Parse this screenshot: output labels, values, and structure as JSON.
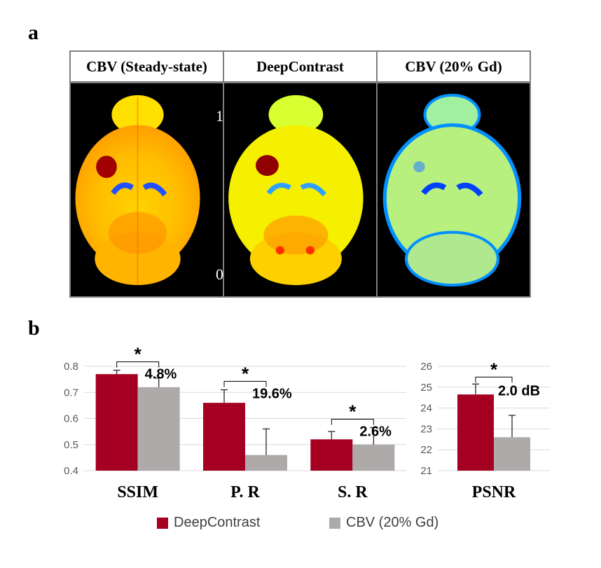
{
  "panel_labels": {
    "a": "a",
    "b": "b"
  },
  "panel_a": {
    "headers": [
      "CBV (Steady-state)",
      "DeepContrast",
      "CBV (20% Gd)"
    ],
    "colorbar": {
      "max_label": "1",
      "min_label": "0"
    }
  },
  "colors": {
    "deepcontrast": "#a50021",
    "cbv20": "#aeaaaa",
    "error_bar": "#404040",
    "grid": "#d9d9d9"
  },
  "legend": {
    "series1": "DeepContrast",
    "series2": "CBV (20% Gd)"
  },
  "chart_data": [
    {
      "type": "bar",
      "categories": [
        "SSIM",
        "P. R",
        "S. R"
      ],
      "series": [
        {
          "name": "DeepContrast",
          "values": [
            0.77,
            0.66,
            0.52
          ],
          "errors": [
            0.015,
            0.05,
            0.03
          ]
        },
        {
          "name": "CBV (20% Gd)",
          "values": [
            0.72,
            0.46,
            0.5
          ],
          "errors": [
            0.035,
            0.1,
            0.065
          ]
        }
      ],
      "annotations": [
        "4.8%",
        "19.6%",
        "2.6%"
      ],
      "significance": [
        "*",
        "*",
        "*"
      ],
      "ylim": [
        0.4,
        0.8
      ],
      "yticks": [
        "0.4",
        "0.5",
        "0.6",
        "0.7",
        "0.8"
      ]
    },
    {
      "type": "bar",
      "categories": [
        "PSNR"
      ],
      "series": [
        {
          "name": "DeepContrast",
          "values": [
            24.65
          ],
          "errors": [
            0.5
          ]
        },
        {
          "name": "CBV (20% Gd)",
          "values": [
            22.6
          ],
          "errors": [
            1.05
          ]
        }
      ],
      "annotations": [
        "2.0 dB"
      ],
      "significance": [
        "*"
      ],
      "ylim": [
        21,
        26
      ],
      "yticks": [
        "21",
        "22",
        "23",
        "24",
        "25",
        "26"
      ]
    }
  ]
}
